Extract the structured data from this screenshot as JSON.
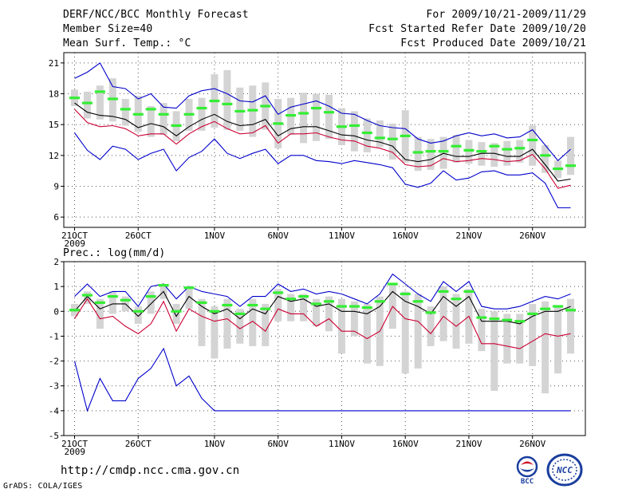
{
  "header": {
    "title": "DERF/NCC/BCC Monthly Forecast",
    "member_size": "Member Size=40",
    "variable": "Mean Surf. Temp.: °C",
    "period": "For 2009/10/21-2009/11/29",
    "started": "Fcst Started Refer Date 2009/10/20",
    "produced": "Fcst Produced Date 2009/10/21"
  },
  "footer": {
    "url": "http://cmdp.ncc.cma.gov.cn",
    "credit": "GrADS: COLA/IGES",
    "logo_bcc": "BCC",
    "logo_ncc": "NCC"
  },
  "colors": {
    "max": "#0000cc",
    "min": "#0000cc",
    "mean": "#000000",
    "lower": "#cc0033",
    "median": "#33ee33",
    "box": "#d4d4d4",
    "grid": "#555555"
  },
  "x_ticks": [
    {
      "index": 0,
      "label": "21OCT",
      "sub": "2009"
    },
    {
      "index": 5,
      "label": "26OCT",
      "sub": ""
    },
    {
      "index": 11,
      "label": "1NOV",
      "sub": ""
    },
    {
      "index": 16,
      "label": "6NOV",
      "sub": ""
    },
    {
      "index": 21,
      "label": "11NOV",
      "sub": ""
    },
    {
      "index": 26,
      "label": "16NOV",
      "sub": ""
    },
    {
      "index": 31,
      "label": "21NOV",
      "sub": ""
    },
    {
      "index": 36,
      "label": "26NOV",
      "sub": ""
    }
  ],
  "chart_data": [
    {
      "type": "line",
      "title": "Mean Surf. Temp.: °C",
      "xlabel": "",
      "ylabel": "",
      "ylim": [
        5,
        22
      ],
      "yticks": [
        6,
        9,
        12,
        15,
        18,
        21
      ],
      "x_count": 40,
      "series": [
        {
          "name": "max",
          "values": [
            19.5,
            20.1,
            21.0,
            18.7,
            18.5,
            17.5,
            18.0,
            16.7,
            16.6,
            17.8,
            18.3,
            18.5,
            18.0,
            17.3,
            17.2,
            17.8,
            16.0,
            16.7,
            17.0,
            17.3,
            16.8,
            16.1,
            16.0,
            15.4,
            14.9,
            14.7,
            14.6,
            13.6,
            13.2,
            13.4,
            13.9,
            14.2,
            13.9,
            14.1,
            13.7,
            13.8,
            14.5,
            13.0,
            11.5,
            12.6
          ]
        },
        {
          "name": "min",
          "values": [
            14.2,
            12.5,
            11.6,
            12.9,
            12.6,
            11.6,
            12.2,
            12.6,
            10.5,
            11.8,
            12.4,
            13.6,
            12.2,
            11.7,
            12.2,
            12.6,
            11.2,
            12.0,
            12.0,
            11.5,
            11.4,
            11.2,
            11.5,
            11.3,
            11.1,
            10.8,
            9.2,
            8.9,
            9.3,
            10.5,
            9.6,
            9.8,
            10.4,
            10.5,
            10.1,
            10.1,
            10.3,
            9.3,
            6.9,
            6.9
          ]
        },
        {
          "name": "mean",
          "values": [
            17.1,
            16.2,
            15.9,
            15.8,
            15.5,
            14.7,
            15.1,
            14.8,
            13.9,
            14.8,
            15.5,
            16.0,
            15.3,
            14.9,
            15.0,
            15.5,
            13.9,
            14.6,
            14.8,
            14.8,
            14.4,
            14.0,
            13.9,
            13.5,
            13.3,
            12.9,
            11.6,
            11.4,
            11.6,
            12.2,
            11.9,
            11.9,
            12.2,
            12.2,
            11.9,
            11.9,
            12.6,
            11.1,
            9.5,
            9.7
          ]
        },
        {
          "name": "lower",
          "values": [
            16.5,
            15.2,
            14.8,
            14.9,
            14.6,
            13.9,
            14.1,
            14.1,
            13.1,
            14.1,
            14.8,
            15.3,
            14.6,
            14.1,
            14.2,
            14.9,
            13.2,
            14.1,
            14.1,
            14.2,
            13.8,
            13.5,
            13.4,
            12.9,
            12.7,
            12.3,
            11.1,
            10.9,
            11.0,
            11.7,
            11.4,
            11.5,
            11.7,
            11.6,
            11.4,
            11.5,
            12.1,
            10.7,
            8.8,
            9.1
          ]
        },
        {
          "name": "median",
          "values": [
            17.6,
            17.1,
            18.2,
            17.5,
            16.5,
            16.0,
            16.5,
            16.0,
            14.9,
            16.0,
            16.6,
            17.3,
            17.0,
            16.3,
            16.4,
            16.8,
            15.1,
            15.9,
            16.1,
            16.6,
            16.2,
            14.8,
            14.9,
            14.2,
            13.7,
            13.6,
            13.9,
            12.3,
            12.4,
            12.4,
            12.9,
            12.5,
            12.4,
            12.9,
            12.6,
            12.7,
            13.5,
            12.0,
            10.7,
            11.0
          ]
        },
        {
          "name": "box_high",
          "values": [
            18.4,
            18.2,
            18.8,
            19.5,
            17.5,
            17.8,
            16.8,
            17.1,
            16.3,
            17.5,
            17.6,
            19.9,
            20.3,
            18.6,
            18.8,
            19.1,
            17.5,
            17.6,
            18.1,
            18.0,
            17.9,
            16.6,
            16.3,
            15.6,
            15.4,
            15.1,
            16.4,
            13.8,
            13.6,
            13.8,
            14.0,
            13.5,
            13.3,
            13.2,
            13.4,
            13.5,
            14.9,
            13.0,
            11.5,
            13.8
          ]
        },
        {
          "name": "box_low",
          "values": [
            16.8,
            15.6,
            15.5,
            15.3,
            14.9,
            14.3,
            13.8,
            14.0,
            13.4,
            14.4,
            14.4,
            14.7,
            14.5,
            14.4,
            13.8,
            14.5,
            12.7,
            14.0,
            13.2,
            13.4,
            13.6,
            13.0,
            12.4,
            12.3,
            12.8,
            11.6,
            11.3,
            10.5,
            10.6,
            10.7,
            11.3,
            11.2,
            11.0,
            10.9,
            11.0,
            11.3,
            11.0,
            10.3,
            9.8,
            10.1
          ]
        }
      ]
    },
    {
      "type": "line",
      "title": "Prec.: log(mm/d)",
      "xlabel": "",
      "ylabel": "",
      "ylim": [
        -5,
        2
      ],
      "yticks": [
        -5,
        -4,
        -3,
        -2,
        -1,
        0,
        1,
        2
      ],
      "x_count": 40,
      "series": [
        {
          "name": "max",
          "values": [
            0.6,
            1.1,
            0.6,
            0.8,
            0.8,
            0.2,
            1.0,
            1.1,
            0.5,
            1.0,
            0.8,
            0.7,
            0.6,
            0.2,
            0.6,
            0.6,
            1.1,
            0.8,
            0.9,
            0.7,
            0.8,
            0.7,
            0.5,
            0.3,
            0.7,
            1.5,
            1.1,
            0.7,
            0.4,
            1.2,
            0.8,
            1.2,
            0.2,
            0.1,
            0.1,
            0.2,
            0.4,
            0.6,
            0.5,
            0.7
          ]
        },
        {
          "name": "min",
          "values": [
            -2.0,
            -4.0,
            -2.7,
            -3.6,
            -3.6,
            -2.7,
            -2.3,
            -1.5,
            -3.0,
            -2.6,
            -3.5,
            -4.0,
            -4.0,
            -4.0,
            -4.0,
            -4.0,
            -4.0,
            -4.0,
            -4.0,
            -4.0,
            -4.0,
            -4.0,
            -4.0,
            -4.0,
            -4.0,
            -4.0,
            -4.0,
            -4.0,
            -4.0,
            -4.0,
            -4.0,
            -4.0,
            -4.0,
            -4.0,
            -4.0,
            -4.0,
            -4.0,
            -4.0,
            -4.0,
            -4.0
          ]
        },
        {
          "name": "mean",
          "values": [
            0.0,
            0.6,
            0.1,
            0.3,
            0.3,
            -0.2,
            0.3,
            0.8,
            -0.2,
            0.6,
            0.2,
            -0.1,
            0.1,
            -0.3,
            0.1,
            -0.1,
            0.6,
            0.4,
            0.5,
            0.2,
            0.3,
            0.0,
            0.0,
            -0.1,
            0.2,
            0.8,
            0.4,
            0.2,
            -0.1,
            0.6,
            0.2,
            0.6,
            -0.4,
            -0.4,
            -0.4,
            -0.5,
            -0.2,
            0.0,
            0.0,
            0.2
          ]
        },
        {
          "name": "lower",
          "values": [
            -0.3,
            0.5,
            -0.3,
            -0.2,
            -0.6,
            -0.9,
            -0.5,
            0.4,
            -0.8,
            0.1,
            -0.2,
            -0.4,
            -0.3,
            -0.7,
            -0.4,
            -0.8,
            0.1,
            -0.1,
            -0.1,
            -0.6,
            -0.3,
            -0.8,
            -0.8,
            -1.1,
            -0.8,
            0.2,
            -0.3,
            -0.4,
            -0.9,
            -0.2,
            -0.6,
            -0.2,
            -1.3,
            -1.3,
            -1.4,
            -1.5,
            -1.2,
            -0.9,
            -1.0,
            -0.9
          ]
        },
        {
          "name": "median",
          "values": [
            0.05,
            0.65,
            0.35,
            0.6,
            0.45,
            0.0,
            0.6,
            1.05,
            0.0,
            0.95,
            0.35,
            0.0,
            0.25,
            -0.1,
            0.25,
            0.1,
            0.75,
            0.5,
            0.6,
            0.3,
            0.4,
            0.2,
            0.2,
            0.15,
            0.4,
            1.1,
            0.7,
            0.4,
            -0.05,
            0.8,
            0.5,
            0.8,
            -0.25,
            -0.3,
            -0.35,
            -0.4,
            -0.1,
            0.1,
            0.2,
            0.05
          ]
        },
        {
          "name": "box_high",
          "values": [
            0.3,
            0.8,
            0.5,
            0.8,
            0.6,
            0.2,
            0.8,
            1.1,
            0.3,
            0.9,
            0.5,
            0.2,
            0.5,
            0.1,
            0.5,
            0.3,
            0.9,
            0.7,
            0.7,
            0.5,
            0.6,
            0.5,
            0.4,
            0.3,
            0.6,
            1.1,
            0.8,
            0.7,
            0.2,
            1.0,
            0.7,
            0.9,
            0.1,
            0.0,
            -0.1,
            -0.1,
            0.3,
            0.4,
            0.2,
            0.5
          ]
        },
        {
          "name": "box_low",
          "values": [
            -0.2,
            0.3,
            -0.7,
            -0.1,
            0.0,
            -0.5,
            -0.1,
            0.5,
            -0.5,
            0.1,
            -1.4,
            -1.9,
            -1.5,
            -1.3,
            -1.4,
            -1.4,
            -0.4,
            -0.4,
            -0.4,
            -0.6,
            -0.8,
            -1.7,
            -1.0,
            -2.1,
            -2.2,
            -0.7,
            -2.5,
            -2.3,
            -1.4,
            -1.2,
            -1.5,
            -1.3,
            -1.6,
            -3.2,
            -2.1,
            -2.1,
            -2.2,
            -3.3,
            -2.5,
            -1.7
          ]
        }
      ]
    }
  ]
}
